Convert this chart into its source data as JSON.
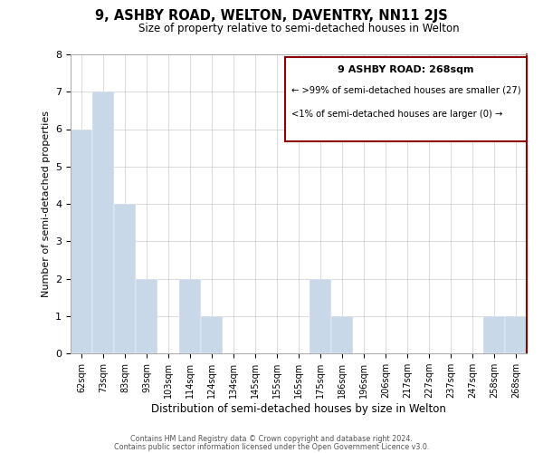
{
  "title": "9, ASHBY ROAD, WELTON, DAVENTRY, NN11 2JS",
  "subtitle": "Size of property relative to semi-detached houses in Welton",
  "xlabel": "Distribution of semi-detached houses by size in Welton",
  "ylabel": "Number of semi-detached properties",
  "categories": [
    "62sqm",
    "73sqm",
    "83sqm",
    "93sqm",
    "103sqm",
    "114sqm",
    "124sqm",
    "134sqm",
    "145sqm",
    "155sqm",
    "165sqm",
    "175sqm",
    "186sqm",
    "196sqm",
    "206sqm",
    "217sqm",
    "227sqm",
    "237sqm",
    "247sqm",
    "258sqm",
    "268sqm"
  ],
  "values": [
    6,
    7,
    4,
    2,
    0,
    2,
    1,
    0,
    0,
    0,
    0,
    2,
    1,
    0,
    0,
    0,
    0,
    0,
    0,
    1,
    1
  ],
  "bar_color": "#c8d8e8",
  "red_color": "#8B0000",
  "ylim": [
    0,
    8
  ],
  "yticks": [
    0,
    1,
    2,
    3,
    4,
    5,
    6,
    7,
    8
  ],
  "legend_title": "9 ASHBY ROAD: 268sqm",
  "legend_line1": "← >99% of semi-detached houses are smaller (27)",
  "legend_line2": "<1% of semi-detached houses are larger (0) →",
  "footer_line1": "Contains HM Land Registry data © Crown copyright and database right 2024.",
  "footer_line2": "Contains public sector information licensed under the Open Government Licence v3.0."
}
